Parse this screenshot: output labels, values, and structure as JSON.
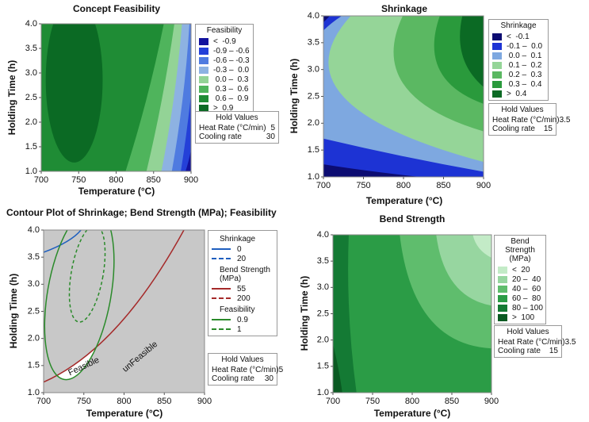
{
  "chart_data": [
    {
      "type": "contour",
      "title": "Concept Feasibility",
      "x_label": "Temperature (°C)",
      "y_label": "Holding Time (h)",
      "xlim": [
        700,
        900
      ],
      "ylim": [
        1,
        4
      ],
      "xticks": [
        700,
        750,
        800,
        850,
        900
      ],
      "yticks": [
        {
          "value": 1,
          "label": "1.0"
        },
        1.5,
        {
          "value": 2,
          "label": "2.0"
        },
        2.5,
        {
          "value": 3,
          "label": "3.0"
        },
        3.5,
        {
          "value": 4,
          "label": "4.0"
        }
      ],
      "legend_title": "Feasibility",
      "levels": [
        {
          "label": "<  -0.9",
          "color": "#12129e"
        },
        {
          "label": "-0.9 – -0.6",
          "color": "#2440d8"
        },
        {
          "label": "-0.6 – -0.3",
          "color": "#4f7be0"
        },
        {
          "label": "-0.3 –  0.0",
          "color": "#8db2e2"
        },
        {
          "label": " 0.0 –  0.3",
          "color": "#93d396"
        },
        {
          "label": " 0.3 –  0.6",
          "color": "#4fb45c"
        },
        {
          "label": " 0.6 –  0.9",
          "color": "#1f8c35"
        },
        {
          "label": ">  0.9",
          "color": "#0b6a24"
        }
      ],
      "hold_values": {
        "title": "Hold Values",
        "items": [
          {
            "name": "Heat Rate (°C/min)",
            "value": 5
          },
          {
            "name": "Cooling rate",
            "value": 30
          }
        ]
      }
    },
    {
      "type": "contour",
      "title": "Shrinkage",
      "x_label": "Temperature (°C)",
      "y_label": "Holding Time (h)",
      "xlim": [
        700,
        900
      ],
      "ylim": [
        1,
        4
      ],
      "xticks": [
        700,
        750,
        800,
        850,
        900
      ],
      "yticks": [
        {
          "value": 1,
          "label": "1.0"
        },
        1.5,
        {
          "value": 2,
          "label": "2.0"
        },
        2.5,
        {
          "value": 3,
          "label": "3.0"
        },
        3.5,
        {
          "value": 4,
          "label": "4.0"
        }
      ],
      "legend_title": "Shrinkage",
      "levels": [
        {
          "label": "<  -0.1",
          "color": "#0c0c72"
        },
        {
          "label": "-0.1 –  0.0",
          "color": "#1d33d4"
        },
        {
          "label": " 0.0 –  0.1",
          "color": "#7ea8e0"
        },
        {
          "label": " 0.1 –  0.2",
          "color": "#95d598"
        },
        {
          "label": " 0.2 –  0.3",
          "color": "#5bb862"
        },
        {
          "label": " 0.3 –  0.4",
          "color": "#2a9a3c"
        },
        {
          "label": ">  0.4",
          "color": "#0b6a24"
        }
      ],
      "hold_values": {
        "title": "Hold Values",
        "items": [
          {
            "name": "Heat Rate (°C/min)",
            "value": 3.5
          },
          {
            "name": "Cooling rate",
            "value": 15
          }
        ]
      }
    },
    {
      "type": "contour-overlay",
      "title": "Contour Plot of Shrinkage; Bend Strength (MPa); Feasibility",
      "x_label": "Temperature (°C)",
      "y_label": "Holding Time (h)",
      "xlim": [
        700,
        900
      ],
      "ylim": [
        1,
        4
      ],
      "xticks": [
        700,
        750,
        800,
        850,
        900
      ],
      "yticks": [
        {
          "value": 1,
          "label": "1.0"
        },
        1.5,
        {
          "value": 2,
          "label": "2.0"
        },
        2.5,
        {
          "value": 3,
          "label": "3.0"
        },
        3.5,
        {
          "value": 4,
          "label": "4.0"
        }
      ],
      "series": [
        {
          "name": "Shrinkage",
          "color": "#1f5fbf",
          "levels": [
            0,
            20
          ]
        },
        {
          "name": "Bend Strength (MPa)",
          "color": "#a52a2a",
          "levels": [
            55,
            200
          ]
        },
        {
          "name": "Feasibility",
          "color": "#2a8a2a",
          "levels": [
            0.9,
            1
          ]
        }
      ],
      "annotations": [
        "Feasible",
        "unFeasible"
      ],
      "hold_values": {
        "title": "Hold Values",
        "items": [
          {
            "name": "Heat Rate (°C/min)",
            "value": 5
          },
          {
            "name": "Cooling rate",
            "value": 30
          }
        ]
      }
    },
    {
      "type": "contour",
      "title": "Bend Strength",
      "x_label": "Temperature (°C)",
      "y_label": "Holding Time (h)",
      "xlim": [
        700,
        900
      ],
      "ylim": [
        1,
        4
      ],
      "xticks": [
        700,
        750,
        800,
        850,
        900
      ],
      "yticks": [
        {
          "value": 1,
          "label": "1.0"
        },
        1.5,
        {
          "value": 2,
          "label": "2.0"
        },
        2.5,
        {
          "value": 3,
          "label": "3.0"
        },
        3.5,
        {
          "value": 4,
          "label": "4.0"
        }
      ],
      "legend_title": "Bend Strength (MPa)",
      "levels": [
        {
          "label": "<  20",
          "color": "#c3ebc7"
        },
        {
          "label": "20 –  40",
          "color": "#97d6a0"
        },
        {
          "label": "40 –  60",
          "color": "#5fbd6d"
        },
        {
          "label": "60 –  80",
          "color": "#2b9c46"
        },
        {
          "label": "80 – 100",
          "color": "#147a34"
        },
        {
          "label": ">  100",
          "color": "#0a5a22"
        }
      ],
      "hold_values": {
        "title": "Hold Values",
        "items": [
          {
            "name": "Heat Rate (°C/min)",
            "value": 3.5
          },
          {
            "name": "Cooling rate",
            "value": 15
          }
        ]
      }
    }
  ]
}
